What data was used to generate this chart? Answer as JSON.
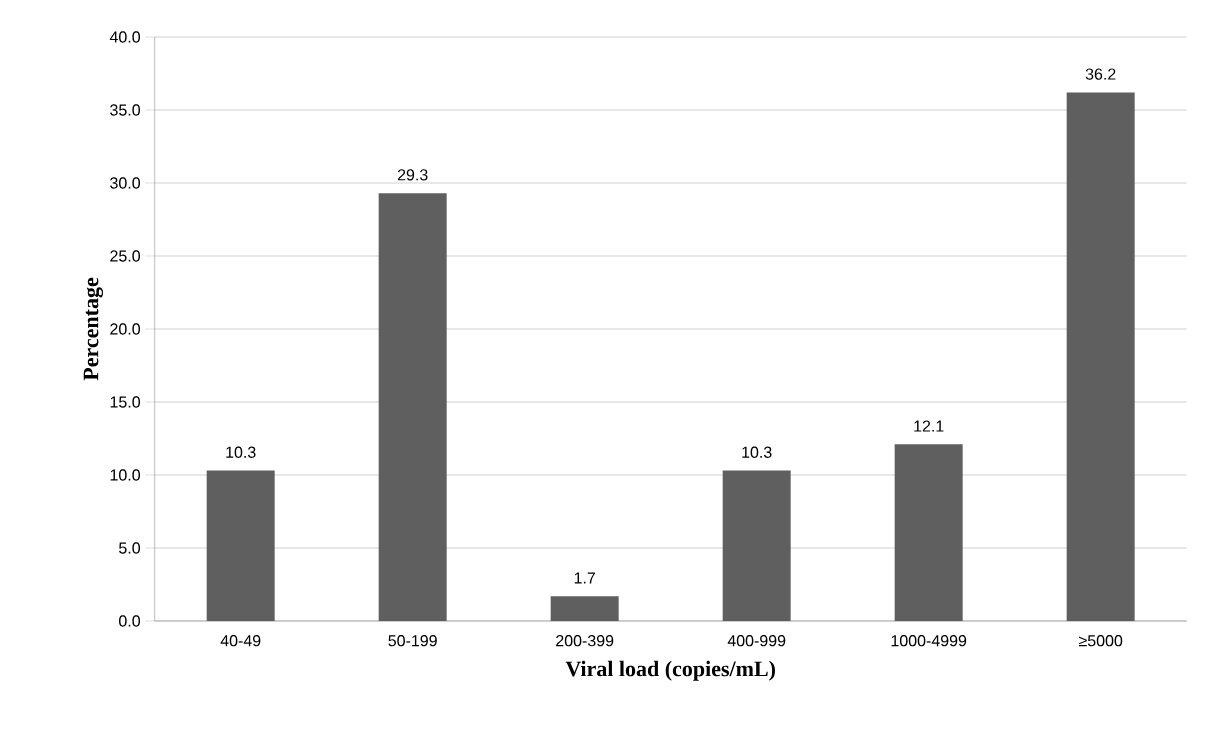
{
  "chart_data": {
    "type": "bar",
    "xlabel": "Viral load (copies/mL)",
    "ylabel": "Percentage",
    "categories": [
      "40-49",
      "50-199",
      "200-399",
      "400-999",
      "1000-4999",
      "≥5000"
    ],
    "values": [
      10.3,
      29.3,
      1.7,
      10.3,
      12.1,
      36.2
    ],
    "color": "#5f5f5f",
    "ylim": [
      0,
      40
    ],
    "yticks": [
      {
        "value": 0,
        "label": "0.0"
      },
      {
        "value": 5,
        "label": "5.0"
      },
      {
        "value": 10,
        "label": "10.0"
      },
      {
        "value": 15,
        "label": "15.0"
      },
      {
        "value": 20,
        "label": "20.0"
      },
      {
        "value": 25,
        "label": "25.0"
      },
      {
        "value": 30,
        "label": "30.0"
      },
      {
        "value": 35,
        "label": "35.0"
      },
      {
        "value": 40,
        "label": "40.0"
      }
    ],
    "grid": "y",
    "data_labels": true
  }
}
